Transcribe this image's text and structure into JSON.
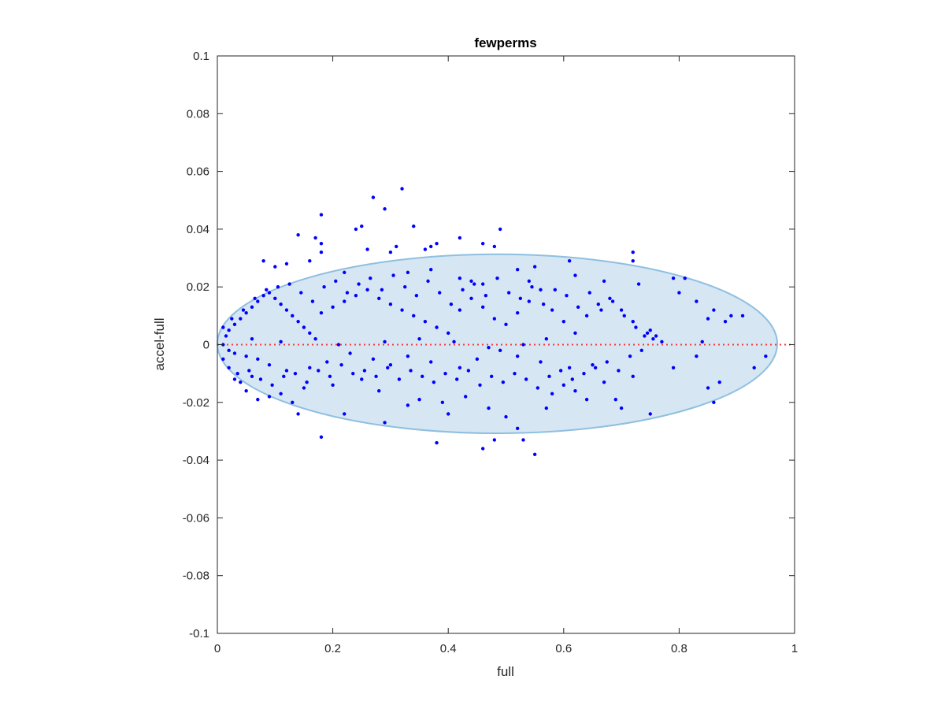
{
  "chart_data": {
    "type": "scatter",
    "title": "fewperms",
    "xlabel": "full",
    "ylabel": "accel-full",
    "xlim": [
      0,
      1
    ],
    "ylim": [
      -0.1,
      0.1
    ],
    "xticks": [
      "0",
      "0.2",
      "0.4",
      "0.6",
      "0.8",
      "1"
    ],
    "yticks": [
      "-0.1",
      "-0.08",
      "-0.06",
      "-0.04",
      "-0.02",
      "0",
      "0.02",
      "0.04",
      "0.06",
      "0.08",
      "0.1"
    ],
    "grid": false,
    "reference_line": {
      "y": 0,
      "style": "dotted",
      "color": "#ff3333"
    },
    "ellipse": {
      "cx": 0.485,
      "cy": 0.0003,
      "rx": 0.485,
      "ry": 0.031,
      "fill": "#d6e7f3",
      "stroke": "#8fbfe0"
    },
    "series": [
      {
        "color": "#0000ff",
        "points": [
          [
            0.32,
            0.054
          ],
          [
            0.27,
            0.051
          ],
          [
            0.29,
            0.047
          ],
          [
            0.18,
            0.045
          ],
          [
            0.25,
            0.041
          ],
          [
            0.34,
            0.041
          ],
          [
            0.24,
            0.04
          ],
          [
            0.49,
            0.04
          ],
          [
            0.14,
            0.038
          ],
          [
            0.17,
            0.037
          ],
          [
            0.42,
            0.037
          ],
          [
            0.38,
            0.035
          ],
          [
            0.46,
            0.035
          ],
          [
            0.18,
            0.035
          ],
          [
            0.37,
            0.034
          ],
          [
            0.31,
            0.034
          ],
          [
            0.48,
            0.034
          ],
          [
            0.26,
            0.033
          ],
          [
            0.36,
            0.033
          ],
          [
            0.72,
            0.032
          ],
          [
            0.18,
            0.032
          ],
          [
            0.3,
            0.032
          ],
          [
            0.72,
            0.029
          ],
          [
            0.08,
            0.029
          ],
          [
            0.61,
            0.029
          ],
          [
            0.12,
            0.028
          ],
          [
            0.16,
            0.029
          ],
          [
            0.37,
            0.026
          ],
          [
            0.33,
            0.025
          ],
          [
            0.55,
            0.027
          ],
          [
            0.1,
            0.027
          ],
          [
            0.22,
            0.025
          ],
          [
            0.52,
            0.026
          ],
          [
            0.42,
            0.023
          ],
          [
            0.62,
            0.024
          ],
          [
            0.79,
            0.023
          ],
          [
            0.81,
            0.023
          ],
          [
            0.44,
            0.022
          ],
          [
            0.54,
            0.022
          ],
          [
            0.67,
            0.022
          ],
          [
            0.46,
            0.021
          ],
          [
            0.73,
            0.021
          ],
          [
            0.83,
            0.015
          ],
          [
            0.8,
            0.018
          ],
          [
            0.86,
            0.012
          ],
          [
            0.89,
            0.01
          ],
          [
            0.91,
            0.01
          ],
          [
            0.85,
            0.009
          ],
          [
            0.88,
            0.008
          ],
          [
            0.75,
            0.005
          ],
          [
            0.76,
            0.003
          ],
          [
            0.77,
            0.001
          ],
          [
            0.84,
            0.001
          ],
          [
            0.79,
            -0.008
          ],
          [
            0.83,
            -0.004
          ],
          [
            0.93,
            -0.008
          ],
          [
            0.95,
            -0.004
          ],
          [
            0.87,
            -0.013
          ],
          [
            0.85,
            -0.015
          ],
          [
            0.86,
            -0.02
          ],
          [
            0.75,
            -0.024
          ],
          [
            0.7,
            -0.022
          ],
          [
            0.67,
            -0.013
          ],
          [
            0.62,
            -0.016
          ],
          [
            0.57,
            -0.022
          ],
          [
            0.52,
            -0.029
          ],
          [
            0.5,
            -0.025
          ],
          [
            0.47,
            -0.022
          ],
          [
            0.53,
            -0.033
          ],
          [
            0.55,
            -0.038
          ],
          [
            0.48,
            -0.033
          ],
          [
            0.46,
            -0.036
          ],
          [
            0.4,
            -0.024
          ],
          [
            0.38,
            -0.034
          ],
          [
            0.29,
            -0.027
          ],
          [
            0.22,
            -0.024
          ],
          [
            0.18,
            -0.032
          ],
          [
            0.14,
            -0.024
          ],
          [
            0.13,
            -0.02
          ],
          [
            0.07,
            -0.019
          ],
          [
            0.05,
            -0.016
          ],
          [
            0.04,
            -0.013
          ],
          [
            0.03,
            -0.012
          ],
          [
            0.06,
            -0.011
          ],
          [
            0.09,
            -0.018
          ],
          [
            0.11,
            -0.017
          ],
          [
            0.15,
            -0.015
          ],
          [
            0.2,
            -0.014
          ],
          [
            0.25,
            -0.012
          ],
          [
            0.28,
            -0.016
          ],
          [
            0.33,
            -0.021
          ],
          [
            0.35,
            -0.019
          ],
          [
            0.39,
            -0.02
          ],
          [
            0.43,
            -0.018
          ],
          [
            0.58,
            -0.017
          ],
          [
            0.6,
            -0.014
          ],
          [
            0.64,
            -0.019
          ],
          [
            0.69,
            -0.019
          ],
          [
            0.72,
            -0.011
          ],
          [
            0.65,
            -0.007
          ],
          [
            0.61,
            -0.008
          ],
          [
            0.56,
            -0.006
          ],
          [
            0.52,
            -0.004
          ],
          [
            0.49,
            -0.002
          ],
          [
            0.45,
            -0.005
          ],
          [
            0.42,
            -0.008
          ],
          [
            0.37,
            -0.006
          ],
          [
            0.33,
            -0.004
          ],
          [
            0.3,
            -0.007
          ],
          [
            0.27,
            -0.005
          ],
          [
            0.23,
            -0.003
          ],
          [
            0.19,
            -0.006
          ],
          [
            0.16,
            -0.008
          ],
          [
            0.12,
            -0.009
          ],
          [
            0.09,
            -0.007
          ],
          [
            0.07,
            -0.005
          ],
          [
            0.05,
            -0.004
          ],
          [
            0.03,
            -0.003
          ],
          [
            0.02,
            -0.002
          ],
          [
            0.01,
            0.0
          ],
          [
            0.015,
            0.003
          ],
          [
            0.02,
            0.005
          ],
          [
            0.03,
            0.007
          ],
          [
            0.04,
            0.009
          ],
          [
            0.05,
            0.011
          ],
          [
            0.06,
            0.013
          ],
          [
            0.07,
            0.015
          ],
          [
            0.08,
            0.017
          ],
          [
            0.09,
            0.018
          ],
          [
            0.1,
            0.016
          ],
          [
            0.11,
            0.014
          ],
          [
            0.12,
            0.012
          ],
          [
            0.13,
            0.01
          ],
          [
            0.14,
            0.008
          ],
          [
            0.15,
            0.006
          ],
          [
            0.16,
            0.004
          ],
          [
            0.17,
            0.002
          ],
          [
            0.18,
            0.011
          ],
          [
            0.2,
            0.013
          ],
          [
            0.22,
            0.015
          ],
          [
            0.24,
            0.017
          ],
          [
            0.26,
            0.019
          ],
          [
            0.28,
            0.016
          ],
          [
            0.3,
            0.014
          ],
          [
            0.32,
            0.012
          ],
          [
            0.34,
            0.01
          ],
          [
            0.36,
            0.008
          ],
          [
            0.38,
            0.006
          ],
          [
            0.4,
            0.004
          ],
          [
            0.42,
            0.012
          ],
          [
            0.44,
            0.016
          ],
          [
            0.46,
            0.013
          ],
          [
            0.48,
            0.009
          ],
          [
            0.5,
            0.007
          ],
          [
            0.52,
            0.011
          ],
          [
            0.54,
            0.015
          ],
          [
            0.56,
            0.019
          ],
          [
            0.58,
            0.012
          ],
          [
            0.6,
            0.008
          ],
          [
            0.62,
            0.004
          ],
          [
            0.64,
            0.01
          ],
          [
            0.66,
            0.014
          ],
          [
            0.68,
            0.016
          ],
          [
            0.7,
            0.012
          ],
          [
            0.72,
            0.008
          ],
          [
            0.74,
            0.003
          ],
          [
            0.57,
            0.002
          ],
          [
            0.53,
            0.0
          ],
          [
            0.47,
            -0.001
          ],
          [
            0.41,
            0.001
          ],
          [
            0.35,
            0.002
          ],
          [
            0.29,
            0.001
          ],
          [
            0.21,
            0.0
          ],
          [
            0.11,
            0.001
          ],
          [
            0.06,
            0.002
          ],
          [
            0.01,
            0.006
          ],
          [
            0.01,
            -0.005
          ],
          [
            0.02,
            -0.008
          ],
          [
            0.025,
            0.009
          ],
          [
            0.035,
            -0.01
          ],
          [
            0.045,
            0.012
          ],
          [
            0.055,
            -0.009
          ],
          [
            0.065,
            0.016
          ],
          [
            0.075,
            -0.012
          ],
          [
            0.085,
            0.019
          ],
          [
            0.095,
            -0.014
          ],
          [
            0.105,
            0.02
          ],
          [
            0.115,
            -0.011
          ],
          [
            0.125,
            0.021
          ],
          [
            0.135,
            -0.01
          ],
          [
            0.145,
            0.018
          ],
          [
            0.155,
            -0.013
          ],
          [
            0.165,
            0.015
          ],
          [
            0.175,
            -0.009
          ],
          [
            0.185,
            0.02
          ],
          [
            0.195,
            -0.011
          ],
          [
            0.205,
            0.022
          ],
          [
            0.215,
            -0.007
          ],
          [
            0.225,
            0.018
          ],
          [
            0.235,
            -0.01
          ],
          [
            0.245,
            0.021
          ],
          [
            0.255,
            -0.009
          ],
          [
            0.265,
            0.023
          ],
          [
            0.275,
            -0.011
          ],
          [
            0.285,
            0.019
          ],
          [
            0.295,
            -0.008
          ],
          [
            0.305,
            0.024
          ],
          [
            0.315,
            -0.012
          ],
          [
            0.325,
            0.02
          ],
          [
            0.335,
            -0.009
          ],
          [
            0.345,
            0.017
          ],
          [
            0.355,
            -0.011
          ],
          [
            0.365,
            0.022
          ],
          [
            0.375,
            -0.013
          ],
          [
            0.385,
            0.018
          ],
          [
            0.395,
            -0.01
          ],
          [
            0.405,
            0.014
          ],
          [
            0.415,
            -0.012
          ],
          [
            0.425,
            0.019
          ],
          [
            0.435,
            -0.009
          ],
          [
            0.445,
            0.021
          ],
          [
            0.455,
            -0.014
          ],
          [
            0.465,
            0.017
          ],
          [
            0.475,
            -0.011
          ],
          [
            0.485,
            0.023
          ],
          [
            0.495,
            -0.013
          ],
          [
            0.505,
            0.018
          ],
          [
            0.515,
            -0.01
          ],
          [
            0.525,
            0.016
          ],
          [
            0.535,
            -0.012
          ],
          [
            0.545,
            0.02
          ],
          [
            0.555,
            -0.015
          ],
          [
            0.565,
            0.014
          ],
          [
            0.575,
            -0.011
          ],
          [
            0.585,
            0.019
          ],
          [
            0.595,
            -0.009
          ],
          [
            0.605,
            0.017
          ],
          [
            0.615,
            -0.012
          ],
          [
            0.625,
            0.013
          ],
          [
            0.635,
            -0.01
          ],
          [
            0.645,
            0.018
          ],
          [
            0.655,
            -0.008
          ],
          [
            0.665,
            0.012
          ],
          [
            0.675,
            -0.006
          ],
          [
            0.685,
            0.015
          ],
          [
            0.695,
            -0.009
          ],
          [
            0.705,
            0.01
          ],
          [
            0.715,
            -0.004
          ],
          [
            0.725,
            0.006
          ],
          [
            0.735,
            -0.002
          ],
          [
            0.745,
            0.004
          ],
          [
            0.755,
            0.002
          ]
        ]
      }
    ]
  }
}
